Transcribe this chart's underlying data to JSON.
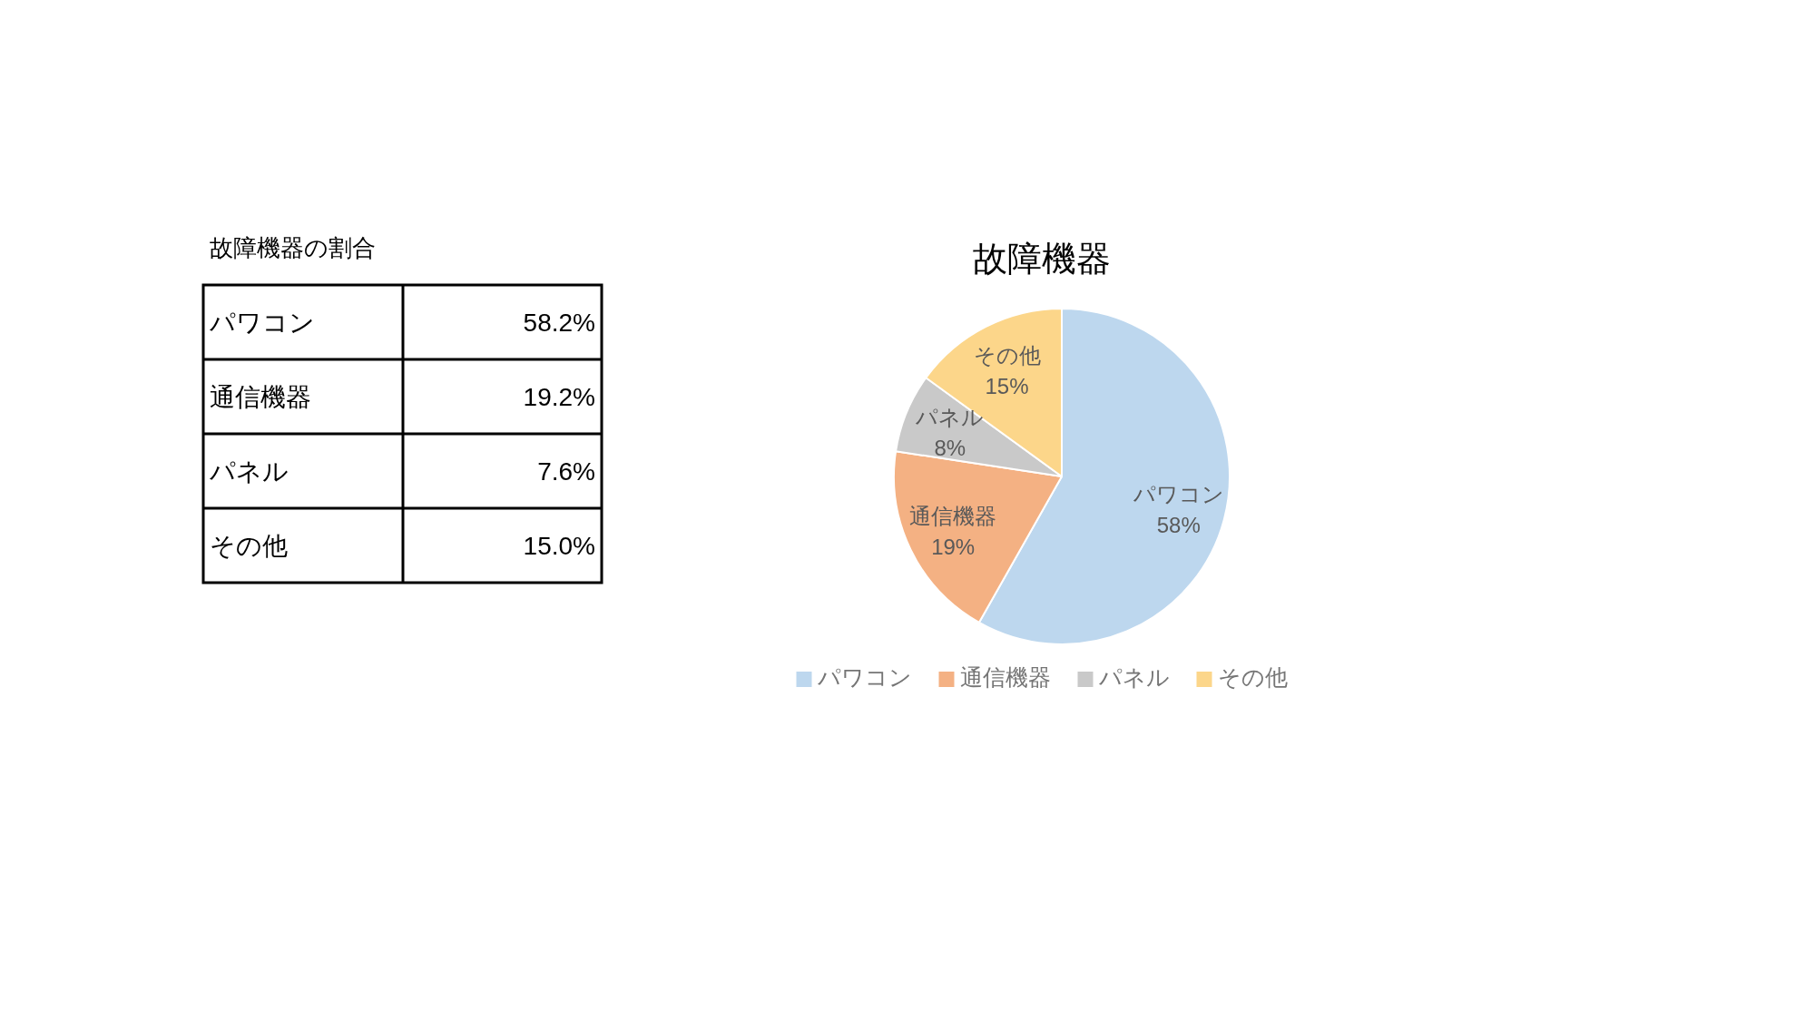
{
  "chart_data": [
    {
      "type": "other",
      "title": "故障機器の割合",
      "categories": [
        "パワコン",
        "通信機器",
        "パネル",
        "その他"
      ],
      "value_labels": [
        "58.2%",
        "19.2%",
        "7.6%",
        "15.0%"
      ]
    },
    {
      "type": "pie",
      "title": "故障機器",
      "categories": [
        "パワコン",
        "通信機器",
        "パネル",
        "その他"
      ],
      "values": [
        58.2,
        19.2,
        7.6,
        15.0
      ],
      "colors": [
        "#bdd7ee",
        "#f4b183",
        "#c9c9c9",
        "#fcd68a"
      ],
      "value_labels": [
        "58%",
        "19%",
        "8%",
        "15%"
      ],
      "legend": "bottom"
    }
  ]
}
